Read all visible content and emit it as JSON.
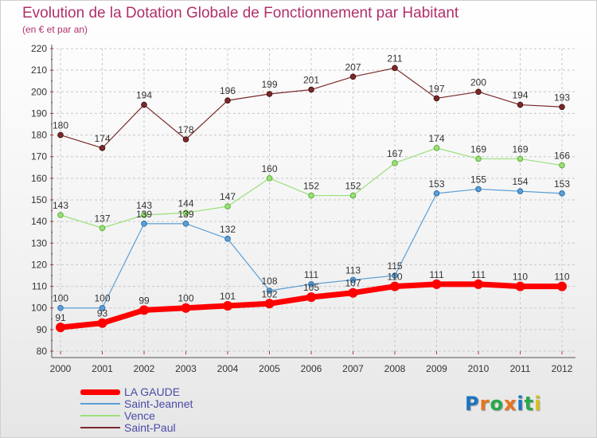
{
  "title": "Evolution de la Dotation Globale de Fonctionnement par Habitant",
  "subtitle": "(en € et par an)",
  "logo": {
    "text": "Proxiti",
    "colors": [
      "#1e73be",
      "#e8731a",
      "#2aa84a",
      "#e8731a",
      "#1e73be",
      "#2aa84a",
      "#d4c21a"
    ]
  },
  "chart_data": {
    "type": "line",
    "x": [
      "2000",
      "2001",
      "2002",
      "2003",
      "2004",
      "2005",
      "2006",
      "2007",
      "2008",
      "2009",
      "2010",
      "2011",
      "2012"
    ],
    "ylim": [
      80,
      220
    ],
    "yticks": [
      80,
      90,
      100,
      110,
      120,
      130,
      140,
      150,
      160,
      170,
      180,
      190,
      200,
      210,
      220
    ],
    "grid": true,
    "legend_position": "bottom-left",
    "series": [
      {
        "name": "Saint-Paul",
        "color": "#7a2a2a",
        "width": 1.2,
        "values": [
          180,
          174,
          194,
          178,
          196,
          199,
          201,
          207,
          211,
          197,
          200,
          194,
          193
        ]
      },
      {
        "name": "Vence",
        "color": "#99e07a",
        "width": 1.2,
        "values": [
          143,
          137,
          143,
          144,
          147,
          160,
          152,
          152,
          167,
          174,
          169,
          169,
          166
        ]
      },
      {
        "name": "Saint-Jeannet",
        "color": "#5b9fd6",
        "width": 1.2,
        "values": [
          100,
          100,
          139,
          139,
          132,
          108,
          111,
          113,
          115,
          153,
          155,
          154,
          153
        ]
      },
      {
        "name": "LA GAUDE",
        "color": "#ff0000",
        "width": 7,
        "values": [
          91,
          93,
          99,
          100,
          101,
          102,
          105,
          107,
          110,
          111,
          111,
          110,
          110
        ]
      }
    ],
    "legend": [
      "LA GAUDE",
      "Saint-Jeannet",
      "Vence",
      "Saint-Paul"
    ]
  }
}
